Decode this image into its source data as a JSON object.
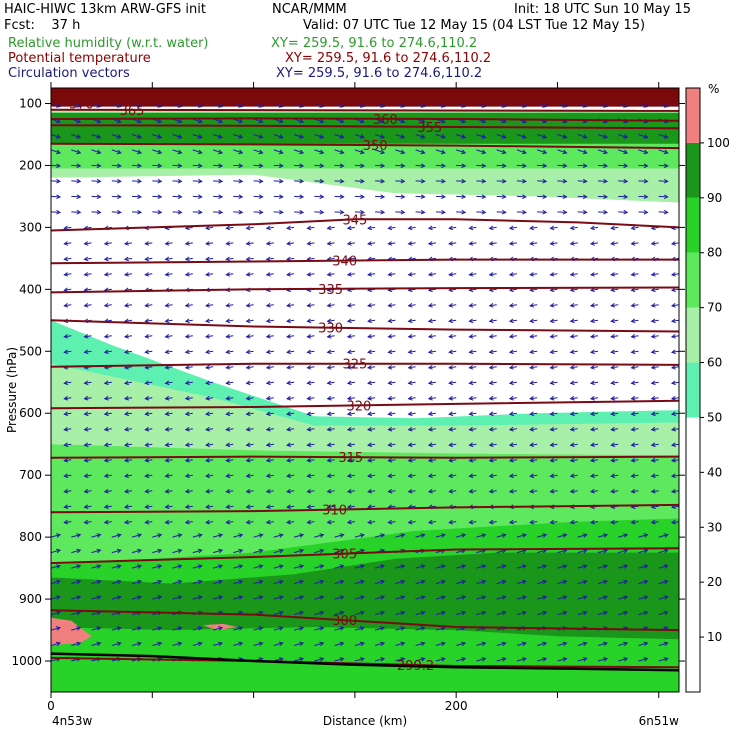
{
  "header": {
    "line1_left": "HAIC-HIWC 13km ARW-GFS init",
    "line1_mid": "NCAR/MMM",
    "line1_right": "Init: 18 UTC Sun 10 May 15",
    "line2_left": "Fcst:    37 h",
    "line2_right": "Valid: 07 UTC Tue 12 May 15 (04 LST Tue 12 May 15)",
    "rh_label": "Relative humidity (w.r.t. water)",
    "rh_xy": "XY= 259.5, 91.6 to 274.6,110.2",
    "theta_label": "Potential temperature",
    "theta_xy": "XY= 259.5, 91.6 to 274.6,110.2",
    "vec_label": "Circulation vectors",
    "vec_xy": "XY= 259.5, 91.6 to 274.6,110.2"
  },
  "colors": {
    "rh_label": "#2e9a2e",
    "theta_label": "#8b0000",
    "vec_label": "#1a1a7a",
    "contour": "#7a0a14",
    "vector": "#1e1ea0",
    "top_band": "#7a0a0a"
  },
  "chart_data": {
    "type": "heatmap",
    "xlabel": "Distance (km)",
    "ylabel": "Pressure (hPa)",
    "xlim": [
      0,
      310
    ],
    "ylim": [
      1050,
      75
    ],
    "x_ticks": [
      "0",
      "200"
    ],
    "x_start_label": "4n53w",
    "x_end_label": "6n51w",
    "y_ticks": [
      100,
      200,
      300,
      400,
      500,
      600,
      700,
      800,
      900,
      1000
    ],
    "colorbar": {
      "unit": "%",
      "levels": [
        10,
        20,
        30,
        40,
        50,
        60,
        70,
        80,
        90,
        100
      ],
      "bands": [
        {
          "from": 50,
          "to": 60,
          "color": "#5ef0b0"
        },
        {
          "from": 60,
          "to": 70,
          "color": "#a8f0a8"
        },
        {
          "from": 70,
          "to": 80,
          "color": "#5ee85e"
        },
        {
          "from": 80,
          "to": 90,
          "color": "#28d228"
        },
        {
          "from": 90,
          "to": 100,
          "color": "#1a961a"
        },
        {
          "from": 100,
          "to": 110,
          "color": "#f08080"
        }
      ]
    },
    "rh_regions": [
      {
        "level": 50,
        "polygon": [
          [
            0,
            450
          ],
          [
            30,
            490
          ],
          [
            80,
            550
          ],
          [
            130,
            605
          ],
          [
            180,
            608
          ],
          [
            240,
            600
          ],
          [
            310,
            595
          ],
          [
            310,
            1050
          ],
          [
            0,
            1050
          ]
        ]
      },
      {
        "level": 60,
        "polygon": [
          [
            0,
            520
          ],
          [
            80,
            575
          ],
          [
            130,
            620
          ],
          [
            200,
            620
          ],
          [
            310,
            615
          ],
          [
            310,
            1050
          ],
          [
            0,
            1050
          ]
        ]
      },
      {
        "level": 70,
        "polygon": [
          [
            0,
            650
          ],
          [
            100,
            660
          ],
          [
            200,
            665
          ],
          [
            310,
            668
          ],
          [
            310,
            1050
          ],
          [
            0,
            1050
          ]
        ]
      },
      {
        "level": 80,
        "polygon": [
          [
            0,
            845
          ],
          [
            100,
            825
          ],
          [
            180,
            790
          ],
          [
            260,
            775
          ],
          [
            310,
            770
          ],
          [
            310,
            1050
          ],
          [
            0,
            1050
          ]
        ]
      },
      {
        "level": 90,
        "polygon": [
          [
            0,
            865
          ],
          [
            60,
            875
          ],
          [
            120,
            860
          ],
          [
            170,
            835
          ],
          [
            220,
            825
          ],
          [
            310,
            825
          ],
          [
            310,
            965
          ],
          [
            250,
            960
          ],
          [
            200,
            950
          ],
          [
            130,
            945
          ],
          [
            60,
            950
          ],
          [
            0,
            945
          ]
        ]
      },
      {
        "level": 100,
        "polygon": [
          [
            0,
            930
          ],
          [
            10,
            935
          ],
          [
            20,
            960
          ],
          [
            15,
            970
          ],
          [
            0,
            975
          ]
        ]
      },
      {
        "level": 100,
        "polygon": [
          [
            75,
            942
          ],
          [
            85,
            940
          ],
          [
            92,
            945
          ],
          [
            82,
            950
          ]
        ]
      },
      {
        "level": 60,
        "polygon": [
          [
            0,
            110
          ],
          [
            310,
            110
          ],
          [
            310,
            260
          ],
          [
            240,
            250
          ],
          [
            170,
            245
          ],
          [
            100,
            215
          ],
          [
            0,
            220
          ]
        ]
      },
      {
        "level": 70,
        "polygon": [
          [
            0,
            145
          ],
          [
            310,
            145
          ],
          [
            310,
            205
          ],
          [
            0,
            205
          ]
        ]
      },
      {
        "level": 90,
        "polygon": [
          [
            0,
            115
          ],
          [
            310,
            115
          ],
          [
            310,
            165
          ],
          [
            0,
            165
          ]
        ]
      },
      {
        "level": 100,
        "polygon": [
          [
            0,
            75
          ],
          [
            310,
            75
          ],
          [
            310,
            105
          ],
          [
            0,
            105
          ]
        ]
      }
    ],
    "theta_contours": [
      {
        "label": "370",
        "label_x": 15,
        "pressure": [
          [
            0,
            100
          ],
          [
            310,
            100
          ]
        ]
      },
      {
        "label": "365",
        "label_x": 40,
        "pressure": [
          [
            0,
            110
          ],
          [
            310,
            112
          ]
        ]
      },
      {
        "label": "360",
        "label_x": 165,
        "pressure": [
          [
            0,
            125
          ],
          [
            100,
            124
          ],
          [
            200,
            125
          ],
          [
            310,
            128
          ]
        ]
      },
      {
        "label": "355",
        "label_x": 187,
        "pressure": [
          [
            0,
            135
          ],
          [
            100,
            136
          ],
          [
            200,
            138
          ],
          [
            310,
            140
          ]
        ]
      },
      {
        "label": "350",
        "label_x": 160,
        "pressure": [
          [
            0,
            165
          ],
          [
            100,
            166
          ],
          [
            200,
            168
          ],
          [
            310,
            172
          ]
        ]
      },
      {
        "label": "345",
        "label_x": 150,
        "pressure": [
          [
            0,
            305
          ],
          [
            100,
            295
          ],
          [
            150,
            287
          ],
          [
            200,
            287
          ],
          [
            260,
            292
          ],
          [
            310,
            300
          ]
        ]
      },
      {
        "label": "340",
        "label_x": 145,
        "pressure": [
          [
            0,
            358
          ],
          [
            100,
            355
          ],
          [
            200,
            352
          ],
          [
            310,
            352
          ]
        ]
      },
      {
        "label": "335",
        "label_x": 138,
        "pressure": [
          [
            0,
            405
          ],
          [
            100,
            400
          ],
          [
            200,
            398
          ],
          [
            310,
            397
          ]
        ]
      },
      {
        "label": "330",
        "label_x": 138,
        "pressure": [
          [
            0,
            450
          ],
          [
            100,
            460
          ],
          [
            200,
            465
          ],
          [
            310,
            468
          ]
        ]
      },
      {
        "label": "325",
        "label_x": 150,
        "pressure": [
          [
            0,
            525
          ],
          [
            100,
            520
          ],
          [
            200,
            520
          ],
          [
            310,
            522
          ]
        ]
      },
      {
        "label": "320",
        "label_x": 152,
        "pressure": [
          [
            0,
            592
          ],
          [
            100,
            590
          ],
          [
            200,
            585
          ],
          [
            310,
            580
          ]
        ]
      },
      {
        "label": "315",
        "label_x": 148,
        "pressure": [
          [
            0,
            672
          ],
          [
            100,
            670
          ],
          [
            200,
            672
          ],
          [
            310,
            670
          ]
        ]
      },
      {
        "label": "310",
        "label_x": 140,
        "pressure": [
          [
            0,
            760
          ],
          [
            100,
            758
          ],
          [
            200,
            752
          ],
          [
            310,
            748
          ]
        ]
      },
      {
        "label": "305",
        "label_x": 145,
        "pressure": [
          [
            0,
            842
          ],
          [
            100,
            832
          ],
          [
            200,
            820
          ],
          [
            310,
            818
          ]
        ]
      },
      {
        "label": "300",
        "label_x": 145,
        "pressure": [
          [
            0,
            918
          ],
          [
            100,
            925
          ],
          [
            200,
            945
          ],
          [
            310,
            950
          ]
        ]
      },
      {
        "label": "299.2",
        "label_x": 180,
        "pressure": [
          [
            0,
            995
          ],
          [
            100,
            1000
          ],
          [
            200,
            1008
          ],
          [
            310,
            1010
          ]
        ]
      }
    ],
    "terrain": [
      [
        0,
        988
      ],
      [
        50,
        992
      ],
      [
        100,
        1000
      ],
      [
        150,
        1006
      ],
      [
        200,
        1010
      ],
      [
        250,
        1012
      ],
      [
        310,
        1015
      ]
    ]
  }
}
